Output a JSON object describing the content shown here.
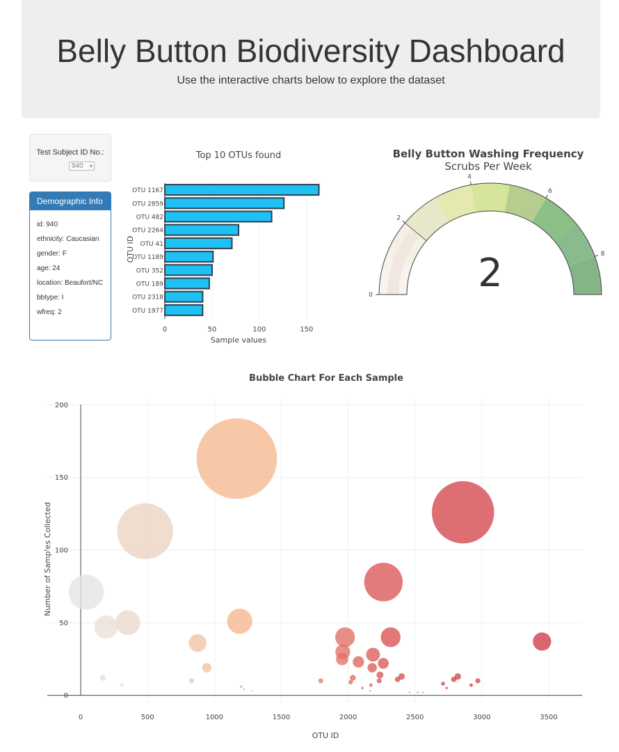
{
  "header": {
    "title": "Belly Button Biodiversity Dashboard",
    "subtitle": "Use the interactive charts below to explore the dataset"
  },
  "selector": {
    "label": "Test Subject ID No.:",
    "selected": "940"
  },
  "demographics": {
    "title": "Demographic Info",
    "items": [
      "id: 940",
      "ethnicity: Caucasian",
      "gender: F",
      "age: 24",
      "location: Beaufort/NC",
      "bbtype: I",
      "wfreq: 2"
    ]
  },
  "chart_data": [
    {
      "type": "bar",
      "orientation": "horizontal",
      "title": "Top 10 OTUs found",
      "xlabel": "Sample values",
      "ylabel": "OTU ID",
      "categories": [
        "OTU 1167",
        "OTU 2859",
        "OTU 482",
        "OTU 2264",
        "OTU 41",
        "OTU 1189",
        "OTU 352",
        "OTU 189",
        "OTU 2318",
        "OTU 1977"
      ],
      "values": [
        163,
        126,
        113,
        78,
        71,
        51,
        50,
        47,
        40,
        40
      ],
      "xlim": [
        0,
        170
      ],
      "xticks": [
        0,
        50,
        100,
        150
      ],
      "bar_color": "#1fc0f4",
      "bar_edge_color": "#2f3f4f"
    },
    {
      "type": "gauge",
      "title": "Belly Button Washing Frequency",
      "subtitle": "Scrubs Per Week",
      "value": 2,
      "range": [
        0,
        9
      ],
      "tick_labels": [
        "0",
        "2",
        "4",
        "6",
        "8"
      ],
      "step_colors": [
        "#f8f3ec",
        "#f4f1e4",
        "#e9e7c9",
        "#e5e8b0",
        "#d5e599",
        "#b7cd8f",
        "#8bc086",
        "#89bc8d",
        "#84b589"
      ]
    },
    {
      "type": "scatter",
      "title": "Bubble Chart For Each Sample",
      "xlabel": "OTU ID",
      "ylabel": "Number of Samples Collected",
      "xlim": [
        -250,
        3750
      ],
      "ylim": [
        -5,
        205
      ],
      "xticks": [
        0,
        500,
        1000,
        1500,
        2000,
        2500,
        3000,
        3500
      ],
      "yticks": [
        0,
        50,
        100,
        150,
        200
      ],
      "points": [
        {
          "x": 41,
          "y": 71
        },
        {
          "x": 189,
          "y": 47
        },
        {
          "x": 352,
          "y": 50
        },
        {
          "x": 482,
          "y": 113
        },
        {
          "x": 1167,
          "y": 163
        },
        {
          "x": 1189,
          "y": 51
        },
        {
          "x": 2859,
          "y": 126
        },
        {
          "x": 2264,
          "y": 78
        },
        {
          "x": 2318,
          "y": 40
        },
        {
          "x": 1977,
          "y": 40
        },
        {
          "x": 3450,
          "y": 37
        },
        {
          "x": 874,
          "y": 36
        },
        {
          "x": 1960,
          "y": 30
        },
        {
          "x": 1955,
          "y": 25
        },
        {
          "x": 2186,
          "y": 28
        },
        {
          "x": 2077,
          "y": 23
        },
        {
          "x": 2180,
          "y": 19
        },
        {
          "x": 2263,
          "y": 22
        },
        {
          "x": 943,
          "y": 19
        },
        {
          "x": 2238,
          "y": 14
        },
        {
          "x": 2400,
          "y": 13
        },
        {
          "x": 2035,
          "y": 12
        },
        {
          "x": 166,
          "y": 12
        },
        {
          "x": 2370,
          "y": 11
        },
        {
          "x": 2820,
          "y": 13
        },
        {
          "x": 2790,
          "y": 11
        },
        {
          "x": 2232,
          "y": 10
        },
        {
          "x": 2970,
          "y": 10
        },
        {
          "x": 829,
          "y": 10
        },
        {
          "x": 1795,
          "y": 10
        },
        {
          "x": 2019,
          "y": 9
        },
        {
          "x": 2710,
          "y": 8
        },
        {
          "x": 2170,
          "y": 7
        },
        {
          "x": 2920,
          "y": 7
        },
        {
          "x": 307,
          "y": 7
        },
        {
          "x": 1200,
          "y": 6
        },
        {
          "x": 2736,
          "y": 5
        },
        {
          "x": 2107,
          "y": 5
        },
        {
          "x": 1220,
          "y": 4
        },
        {
          "x": 2164,
          "y": 3
        },
        {
          "x": 1283,
          "y": 3
        },
        {
          "x": 2560,
          "y": 2
        },
        {
          "x": 2460,
          "y": 2
        },
        {
          "x": 2520,
          "y": 2
        }
      ],
      "colorscale": [
        "#e6e6e6",
        "#f4b88f",
        "#d95050",
        "#cf3a4a"
      ]
    }
  ]
}
